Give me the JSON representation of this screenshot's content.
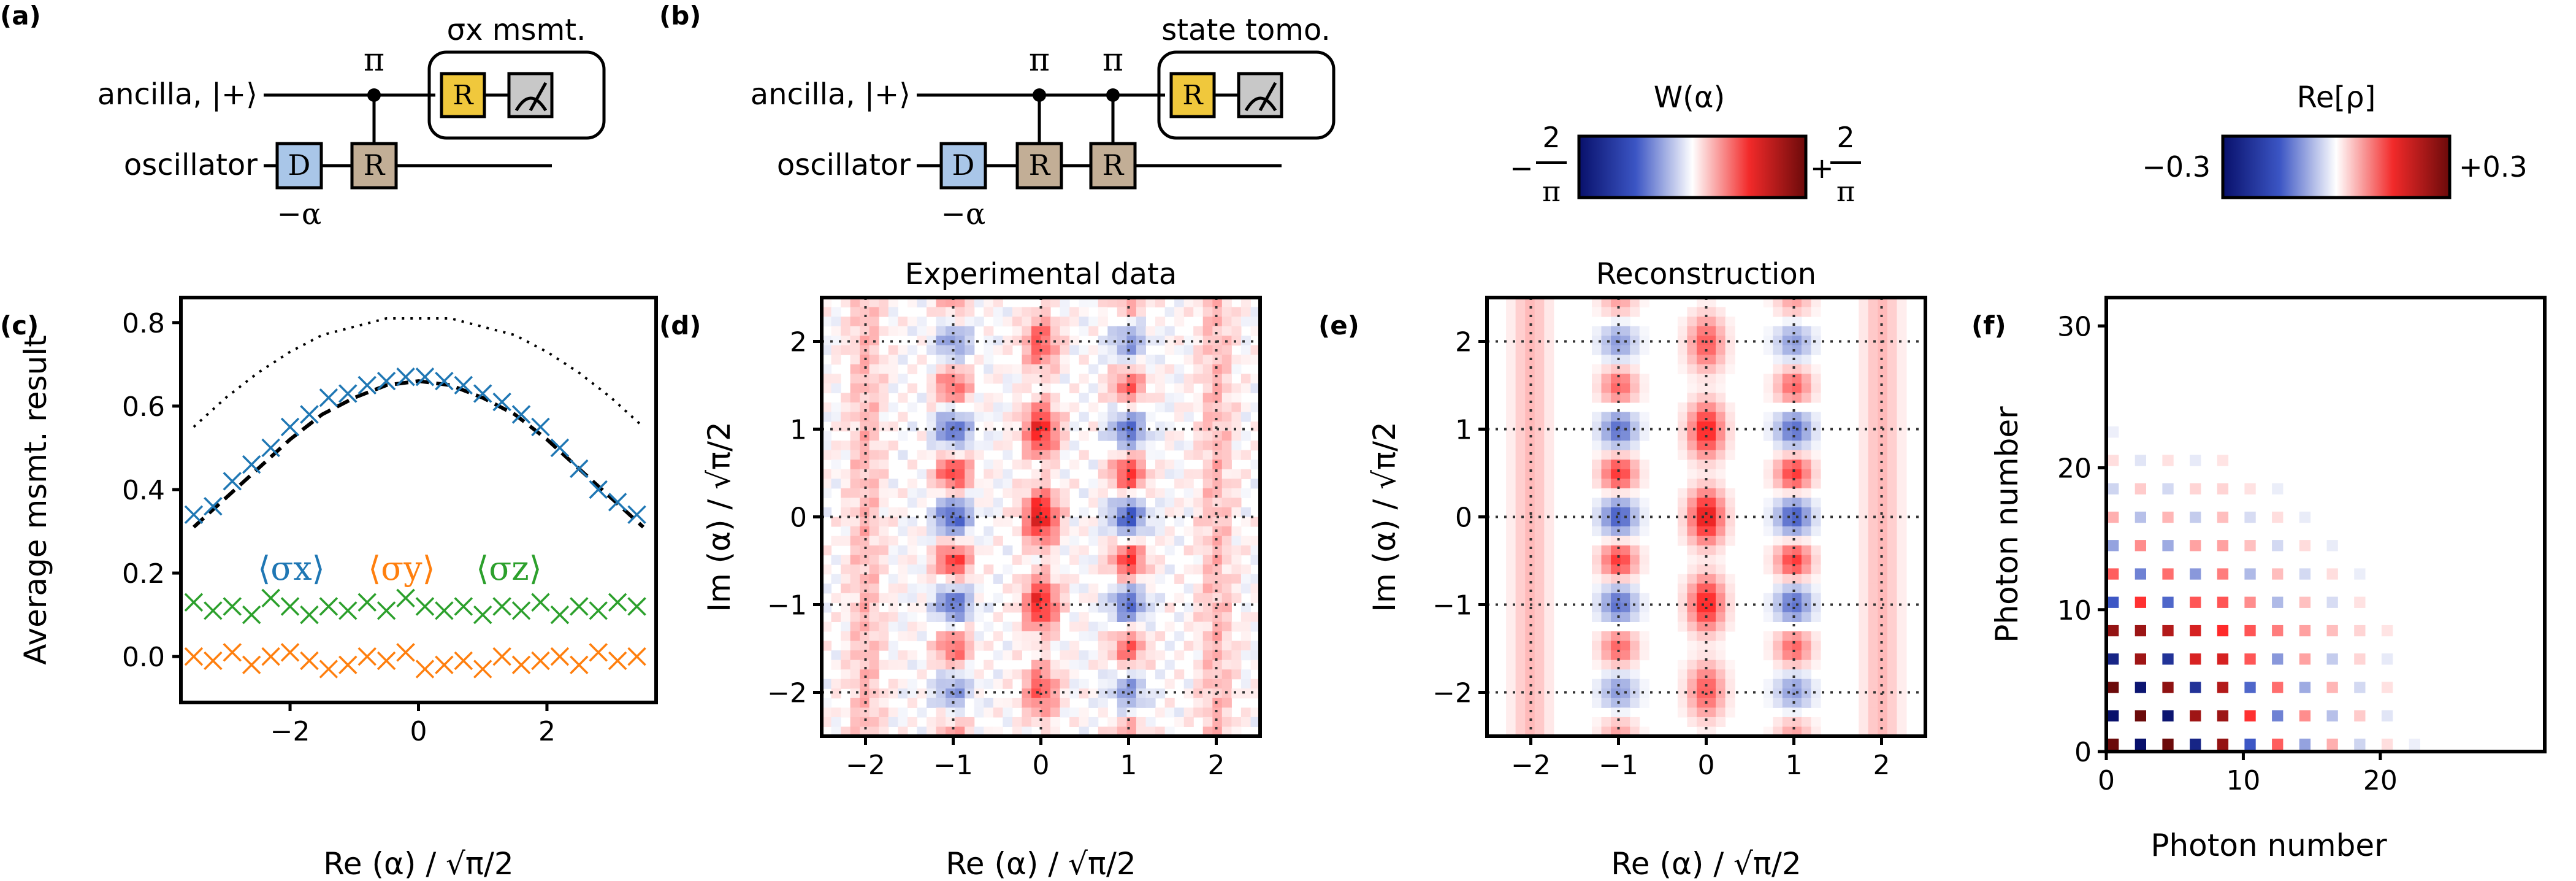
{
  "panel_labels": {
    "a": "(a)",
    "b": "(b)",
    "c": "(c)",
    "d": "(d)",
    "e": "(e)",
    "f": "(f)"
  },
  "circuit_a": {
    "wire_top": "ancilla, |+⟩",
    "wire_bottom": "oscillator",
    "pi": "π",
    "box_title": "σx msmt.",
    "gate_D": "D",
    "gate_R": "R",
    "d_arg": "−α"
  },
  "circuit_b": {
    "wire_top": "ancilla, |+⟩",
    "wire_bottom": "oscillator",
    "pi": "π",
    "box_title": "state tomo.",
    "gate_D": "D",
    "gate_R": "R",
    "d_arg": "−α"
  },
  "colorbar_w": {
    "label": "W(α)",
    "min": "−2/π",
    "max": "+2/π",
    "min_num": "2",
    "min_den": "π",
    "max_num": "2",
    "max_den": "π"
  },
  "colorbar_rho": {
    "label": "Re[ρ]",
    "min": "−0.3",
    "max": "+0.3"
  },
  "colors": {
    "sx": "#1f77b4",
    "sy": "#ff7f0e",
    "sz": "#2ca02c",
    "gate_D": "#a9c6e8",
    "gate_R": "#c2ae96",
    "gate_R_msmt": "#f0c83c",
    "meter": "#c8c8c8"
  },
  "chart_data": [
    {
      "id": "c",
      "type": "scatter",
      "xlabel": "Re (α) / √π/2",
      "ylabel": "Average msmt. result",
      "xlim": [
        -3.7,
        3.7
      ],
      "ylim": [
        -0.11,
        0.86
      ],
      "xticks": [
        "−2",
        "0",
        "2"
      ],
      "yticks": [
        "0.0",
        "0.2",
        "0.4",
        "0.6",
        "0.8"
      ],
      "series": [
        {
          "name": "⟨σx⟩",
          "color": "#1f77b4",
          "marker": "x",
          "x": [
            -3.5,
            -3.2,
            -2.9,
            -2.6,
            -2.3,
            -2.0,
            -1.7,
            -1.4,
            -1.1,
            -0.8,
            -0.5,
            -0.2,
            0.1,
            0.4,
            0.7,
            1.0,
            1.3,
            1.6,
            1.9,
            2.2,
            2.5,
            2.8,
            3.1,
            3.4
          ],
          "y": [
            0.34,
            0.36,
            0.42,
            0.46,
            0.5,
            0.55,
            0.58,
            0.62,
            0.63,
            0.65,
            0.66,
            0.67,
            0.67,
            0.66,
            0.65,
            0.63,
            0.61,
            0.58,
            0.55,
            0.5,
            0.45,
            0.4,
            0.37,
            0.34
          ]
        },
        {
          "name": "⟨σy⟩",
          "color": "#ff7f0e",
          "marker": "x",
          "x": [
            -3.5,
            -3.2,
            -2.9,
            -2.6,
            -2.3,
            -2.0,
            -1.7,
            -1.4,
            -1.1,
            -0.8,
            -0.5,
            -0.2,
            0.1,
            0.4,
            0.7,
            1.0,
            1.3,
            1.6,
            1.9,
            2.2,
            2.5,
            2.8,
            3.1,
            3.4
          ],
          "y": [
            0.0,
            -0.01,
            0.01,
            -0.02,
            0.0,
            0.01,
            -0.01,
            -0.03,
            -0.02,
            0.0,
            -0.01,
            0.01,
            -0.03,
            -0.02,
            -0.01,
            -0.03,
            0.0,
            -0.02,
            -0.01,
            0.0,
            -0.02,
            0.01,
            -0.01,
            0.0
          ]
        },
        {
          "name": "⟨σz⟩",
          "color": "#2ca02c",
          "marker": "x",
          "x": [
            -3.5,
            -3.2,
            -2.9,
            -2.6,
            -2.3,
            -2.0,
            -1.7,
            -1.4,
            -1.1,
            -0.8,
            -0.5,
            -0.2,
            0.1,
            0.4,
            0.7,
            1.0,
            1.3,
            1.6,
            1.9,
            2.2,
            2.5,
            2.8,
            3.1,
            3.4
          ],
          "y": [
            0.13,
            0.11,
            0.12,
            0.1,
            0.14,
            0.12,
            0.1,
            0.12,
            0.11,
            0.13,
            0.11,
            0.14,
            0.12,
            0.11,
            0.12,
            0.1,
            0.12,
            0.11,
            0.13,
            0.1,
            0.12,
            0.11,
            0.13,
            0.12
          ]
        }
      ],
      "curves": [
        {
          "style": "dashed",
          "x": [
            -3.5,
            -3.0,
            -2.5,
            -2.0,
            -1.5,
            -1.0,
            -0.5,
            0,
            0.5,
            1.0,
            1.5,
            2.0,
            2.5,
            3.0,
            3.5
          ],
          "y": [
            0.31,
            0.38,
            0.45,
            0.52,
            0.58,
            0.62,
            0.65,
            0.66,
            0.65,
            0.62,
            0.58,
            0.52,
            0.45,
            0.38,
            0.31
          ]
        },
        {
          "style": "dotted",
          "x": [
            -3.5,
            -3.0,
            -2.5,
            -2.0,
            -1.5,
            -1.0,
            -0.5,
            0,
            0.5,
            1.0,
            1.5,
            2.0,
            2.5,
            3.0,
            3.5
          ],
          "y": [
            0.55,
            0.62,
            0.68,
            0.73,
            0.77,
            0.79,
            0.81,
            0.81,
            0.81,
            0.79,
            0.77,
            0.73,
            0.68,
            0.62,
            0.55
          ]
        }
      ]
    },
    {
      "id": "d",
      "type": "heatmap",
      "title": "Experimental data",
      "xlabel": "Re (α) / √π/2",
      "ylabel": "Im (α) / √π/2",
      "xlim": [
        -2.5,
        2.5
      ],
      "ylim": [
        -2.5,
        2.5
      ],
      "xticks": [
        "−2",
        "−1",
        "0",
        "1",
        "2"
      ],
      "yticks": [
        "−2",
        "−1",
        "0",
        "1",
        "2"
      ]
    },
    {
      "id": "e",
      "type": "heatmap",
      "title": "Reconstruction",
      "xlabel": "Re (α) / √π/2",
      "ylabel": "Im (α) / √π/2",
      "xlim": [
        -2.5,
        2.5
      ],
      "ylim": [
        -2.5,
        2.5
      ],
      "xticks": [
        "−2",
        "−1",
        "0",
        "1",
        "2"
      ],
      "yticks": [
        "−2",
        "−1",
        "0",
        "1",
        "2"
      ]
    },
    {
      "id": "f",
      "type": "heatmap",
      "xlabel": "Photon number",
      "ylabel": "Photon number",
      "xlim": [
        0,
        32
      ],
      "ylim": [
        0,
        32
      ],
      "xticks": [
        "0",
        "10",
        "20"
      ],
      "yticks": [
        "0",
        "10",
        "20",
        "30"
      ]
    }
  ]
}
